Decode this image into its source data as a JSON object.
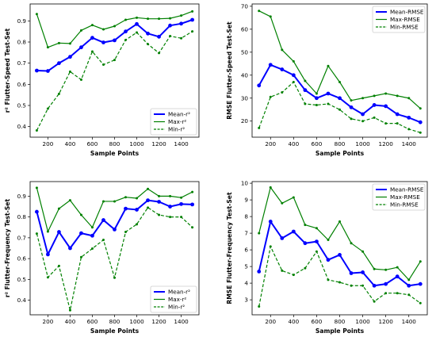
{
  "chart_data": [
    {
      "type": "line",
      "xlabel": "Sample Points",
      "ylabel": "r² Flutter-Speed Test-Set",
      "xlim": [
        40,
        1560
      ],
      "ylim": [
        0.35,
        0.98
      ],
      "xticks": [
        200,
        400,
        600,
        800,
        1000,
        1200,
        1400
      ],
      "yticks": [
        0.4,
        0.5,
        0.6,
        0.7,
        0.8,
        0.9
      ],
      "ytick_labels": [
        "0.4",
        "0.5",
        "0.6",
        "0.7",
        "0.8",
        "0.9"
      ],
      "legend_position": "lower-right",
      "x": [
        100,
        200,
        300,
        400,
        500,
        600,
        700,
        800,
        900,
        1000,
        1100,
        1200,
        1300,
        1400,
        1500
      ],
      "series": [
        {
          "name": "Mean-r²",
          "color": "#0000ff",
          "style": "solid-markers",
          "values": [
            0.665,
            0.663,
            0.7,
            0.73,
            0.775,
            0.82,
            0.798,
            0.808,
            0.85,
            0.885,
            0.84,
            0.825,
            0.878,
            0.887,
            0.905
          ]
        },
        {
          "name": "Max-r²",
          "color": "#008000",
          "style": "solid",
          "values": [
            0.932,
            0.775,
            0.795,
            0.793,
            0.855,
            0.88,
            0.86,
            0.875,
            0.905,
            0.915,
            0.91,
            0.91,
            0.912,
            0.925,
            0.945
          ]
        },
        {
          "name": "Min-r²",
          "color": "#008000",
          "style": "dashed",
          "values": [
            0.382,
            0.485,
            0.555,
            0.66,
            0.622,
            0.755,
            0.693,
            0.715,
            0.81,
            0.845,
            0.79,
            0.748,
            0.828,
            0.818,
            0.85
          ]
        }
      ]
    },
    {
      "type": "line",
      "xlabel": "Sample Points",
      "ylabel": "RMSE Flutter-Speed Test-Set",
      "xlim": [
        40,
        1560
      ],
      "ylim": [
        13,
        71
      ],
      "xticks": [
        200,
        400,
        600,
        800,
        1000,
        1200,
        1400
      ],
      "yticks": [
        20,
        30,
        40,
        50,
        60,
        70
      ],
      "ytick_labels": [
        "20",
        "30",
        "40",
        "50",
        "60",
        "70"
      ],
      "legend_position": "top-right",
      "x": [
        100,
        200,
        300,
        400,
        500,
        600,
        700,
        800,
        900,
        1000,
        1100,
        1200,
        1300,
        1400,
        1500
      ],
      "series": [
        {
          "name": "Mean-RMSE",
          "color": "#0000ff",
          "style": "solid-markers",
          "values": [
            35.5,
            44.5,
            42.5,
            40.0,
            33.5,
            30.0,
            32.0,
            30.0,
            26.0,
            23.0,
            27.0,
            26.5,
            23.0,
            21.5,
            19.5
          ]
        },
        {
          "name": "Max-RMSE",
          "color": "#008000",
          "style": "solid",
          "values": [
            68.0,
            65.5,
            51.0,
            46.0,
            37.5,
            32.0,
            44.0,
            37.0,
            29.0,
            30.0,
            31.0,
            32.0,
            31.0,
            30.0,
            25.5
          ]
        },
        {
          "name": "Min-RMSE",
          "color": "#008000",
          "style": "dashed",
          "values": [
            17.0,
            30.5,
            32.5,
            37.0,
            27.5,
            27.0,
            27.5,
            25.0,
            21.0,
            20.0,
            21.5,
            19.0,
            19.0,
            16.5,
            15.0
          ]
        }
      ]
    },
    {
      "type": "line",
      "xlabel": "Sample Points",
      "ylabel": "r² Flutter-Frequency Test-Set",
      "xlim": [
        40,
        1560
      ],
      "ylim": [
        0.33,
        0.97
      ],
      "xticks": [
        200,
        400,
        600,
        800,
        1000,
        1200,
        1400
      ],
      "yticks": [
        0.4,
        0.5,
        0.6,
        0.7,
        0.8,
        0.9
      ],
      "ytick_labels": [
        "0.4",
        "0.5",
        "0.6",
        "0.7",
        "0.8",
        "0.9"
      ],
      "legend_position": "lower-right",
      "x": [
        100,
        200,
        300,
        400,
        500,
        600,
        700,
        800,
        900,
        1000,
        1100,
        1200,
        1300,
        1400,
        1500
      ],
      "series": [
        {
          "name": "Mean-r²",
          "color": "#0000ff",
          "style": "solid-markers",
          "values": [
            0.825,
            0.62,
            0.728,
            0.65,
            0.722,
            0.71,
            0.785,
            0.74,
            0.84,
            0.835,
            0.88,
            0.873,
            0.85,
            0.862,
            0.86
          ]
        },
        {
          "name": "Max-r²",
          "color": "#008000",
          "style": "solid",
          "values": [
            0.94,
            0.73,
            0.84,
            0.88,
            0.81,
            0.75,
            0.875,
            0.875,
            0.895,
            0.89,
            0.935,
            0.9,
            0.9,
            0.893,
            0.92
          ]
        },
        {
          "name": "Min-r²",
          "color": "#008000",
          "style": "dashed",
          "values": [
            0.72,
            0.51,
            0.565,
            0.352,
            0.607,
            0.648,
            0.69,
            0.508,
            0.728,
            0.765,
            0.845,
            0.81,
            0.8,
            0.8,
            0.75
          ]
        }
      ]
    },
    {
      "type": "line",
      "xlabel": "Sample Points",
      "ylabel": "RMSE Flutter-Frequency Test-Set",
      "xlim": [
        40,
        1560
      ],
      "ylim": [
        2.1,
        10.1
      ],
      "xticks": [
        200,
        400,
        600,
        800,
        1000,
        1200,
        1400
      ],
      "yticks": [
        3,
        4,
        5,
        6,
        7,
        8,
        9,
        10
      ],
      "ytick_labels": [
        "3",
        "4",
        "5",
        "6",
        "7",
        "8",
        "9",
        "10"
      ],
      "legend_position": "top-right",
      "x": [
        100,
        200,
        300,
        400,
        500,
        600,
        700,
        800,
        900,
        1000,
        1100,
        1200,
        1300,
        1400,
        1500
      ],
      "series": [
        {
          "name": "Mean-RMSE",
          "color": "#0000ff",
          "style": "solid-markers",
          "values": [
            4.7,
            7.7,
            6.7,
            7.1,
            6.4,
            6.5,
            5.4,
            5.7,
            4.6,
            4.65,
            3.85,
            3.95,
            4.4,
            3.85,
            3.95
          ]
        },
        {
          "name": "Max-RMSE",
          "color": "#008000",
          "style": "solid",
          "values": [
            7.0,
            9.75,
            8.8,
            9.15,
            7.5,
            7.3,
            6.6,
            7.7,
            6.4,
            5.9,
            4.85,
            4.8,
            4.95,
            4.2,
            5.3
          ]
        },
        {
          "name": "Min-RMSE",
          "color": "#008000",
          "style": "dashed",
          "values": [
            2.6,
            6.2,
            4.75,
            4.5,
            4.9,
            5.9,
            4.2,
            4.05,
            3.85,
            3.85,
            2.9,
            3.4,
            3.4,
            3.3,
            2.8
          ]
        }
      ]
    }
  ]
}
